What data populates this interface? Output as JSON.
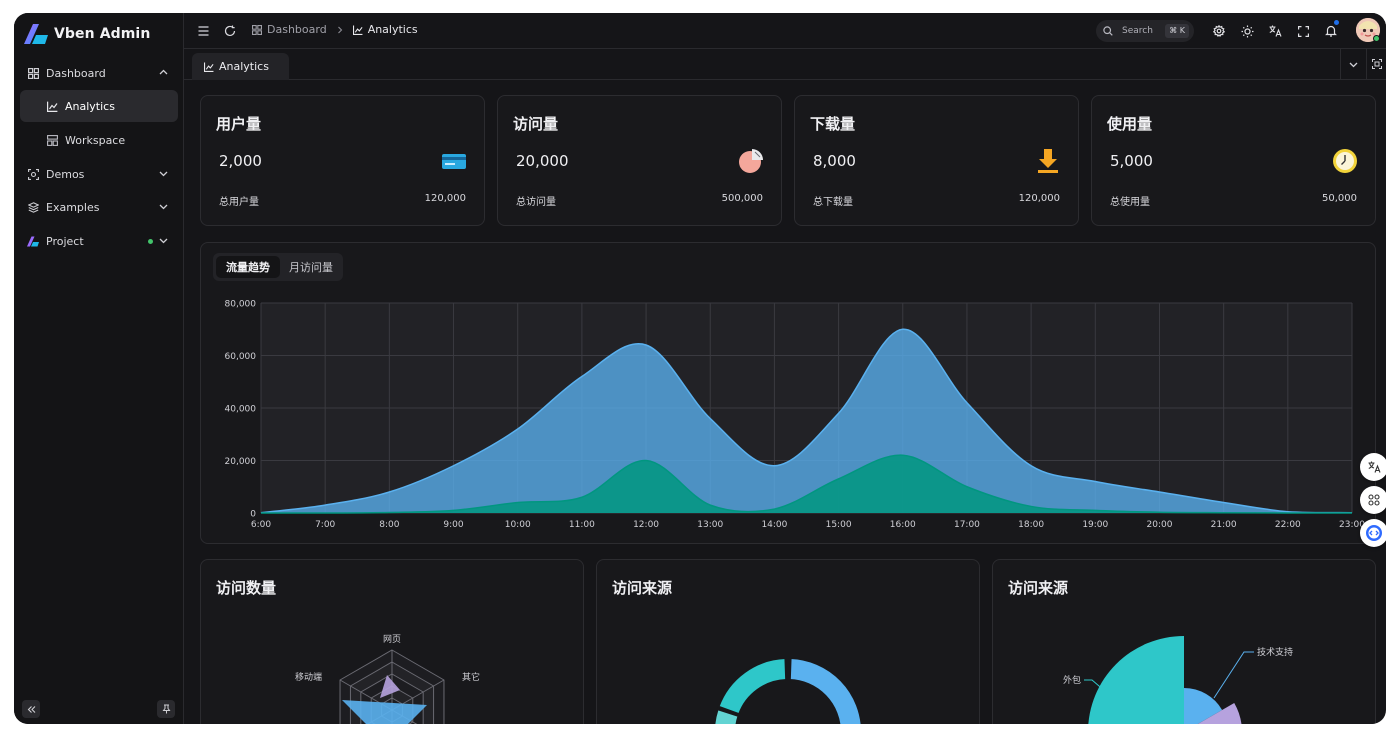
{
  "app": {
    "title": "Vben Admin"
  },
  "sidebar": {
    "items": [
      {
        "label": "Dashboard",
        "icon": "dashboard-icon",
        "expanded": true
      },
      {
        "label": "Analytics",
        "icon": "chart-icon",
        "active": true
      },
      {
        "label": "Workspace",
        "icon": "workspace-icon"
      },
      {
        "label": "Demos",
        "icon": "demos-icon"
      },
      {
        "label": "Examples",
        "icon": "examples-icon"
      },
      {
        "label": "Project",
        "icon": "vben-logo-icon"
      }
    ]
  },
  "header": {
    "breadcrumb": [
      "Dashboard",
      "Analytics"
    ],
    "search_label": "Search",
    "search_shortcut": "⌘ K"
  },
  "tabs": [
    {
      "label": "Analytics"
    }
  ],
  "stats": [
    {
      "title": "用户量",
      "value": "2,000",
      "total_label": "总用户量",
      "total": "120,000",
      "icon": "card-icon"
    },
    {
      "title": "访问量",
      "value": "20,000",
      "total_label": "总访问量",
      "total": "500,000",
      "icon": "pie-icon"
    },
    {
      "title": "下载量",
      "value": "8,000",
      "total_label": "总下载量",
      "total": "120,000",
      "icon": "download-icon"
    },
    {
      "title": "使用量",
      "value": "5,000",
      "total_label": "总使用量",
      "total": "50,000",
      "icon": "clock-icon"
    }
  ],
  "trend": {
    "tabs": [
      "流量趋势",
      "月访问量"
    ]
  },
  "bottom_cards": [
    {
      "title": "访问数量"
    },
    {
      "title": "访问来源"
    },
    {
      "title": "访问来源"
    }
  ],
  "chart_data": [
    {
      "type": "area",
      "categories": [
        "6:00",
        "7:00",
        "8:00",
        "9:00",
        "10:00",
        "11:00",
        "12:00",
        "13:00",
        "14:00",
        "15:00",
        "16:00",
        "17:00",
        "18:00",
        "19:00",
        "20:00",
        "21:00",
        "22:00",
        "23:00"
      ],
      "ylim": [
        0,
        80000
      ],
      "yticks": [
        "0",
        "20,000",
        "40,000",
        "60,000",
        "80,000"
      ],
      "grid": true,
      "series": [
        {
          "values": [
            100,
            3000,
            8000,
            18000,
            32000,
            52000,
            64000,
            36000,
            18000,
            38000,
            70000,
            42000,
            18000,
            12000,
            8000,
            4000,
            500,
            100
          ],
          "color": "#5ab1ef"
        },
        {
          "values": [
            0,
            0,
            200,
            1000,
            4000,
            6000,
            20000,
            3000,
            1500,
            13000,
            22000,
            10000,
            2500,
            1000,
            300,
            100,
            0,
            0
          ],
          "color": "#019680"
        }
      ]
    },
    {
      "type": "radar",
      "indicators": [
        "网页",
        "其它",
        "移动端"
      ]
    },
    {
      "type": "pie",
      "variant": "donut"
    },
    {
      "type": "pie",
      "variant": "rose",
      "labels": [
        "技术支持",
        "外包"
      ]
    }
  ]
}
